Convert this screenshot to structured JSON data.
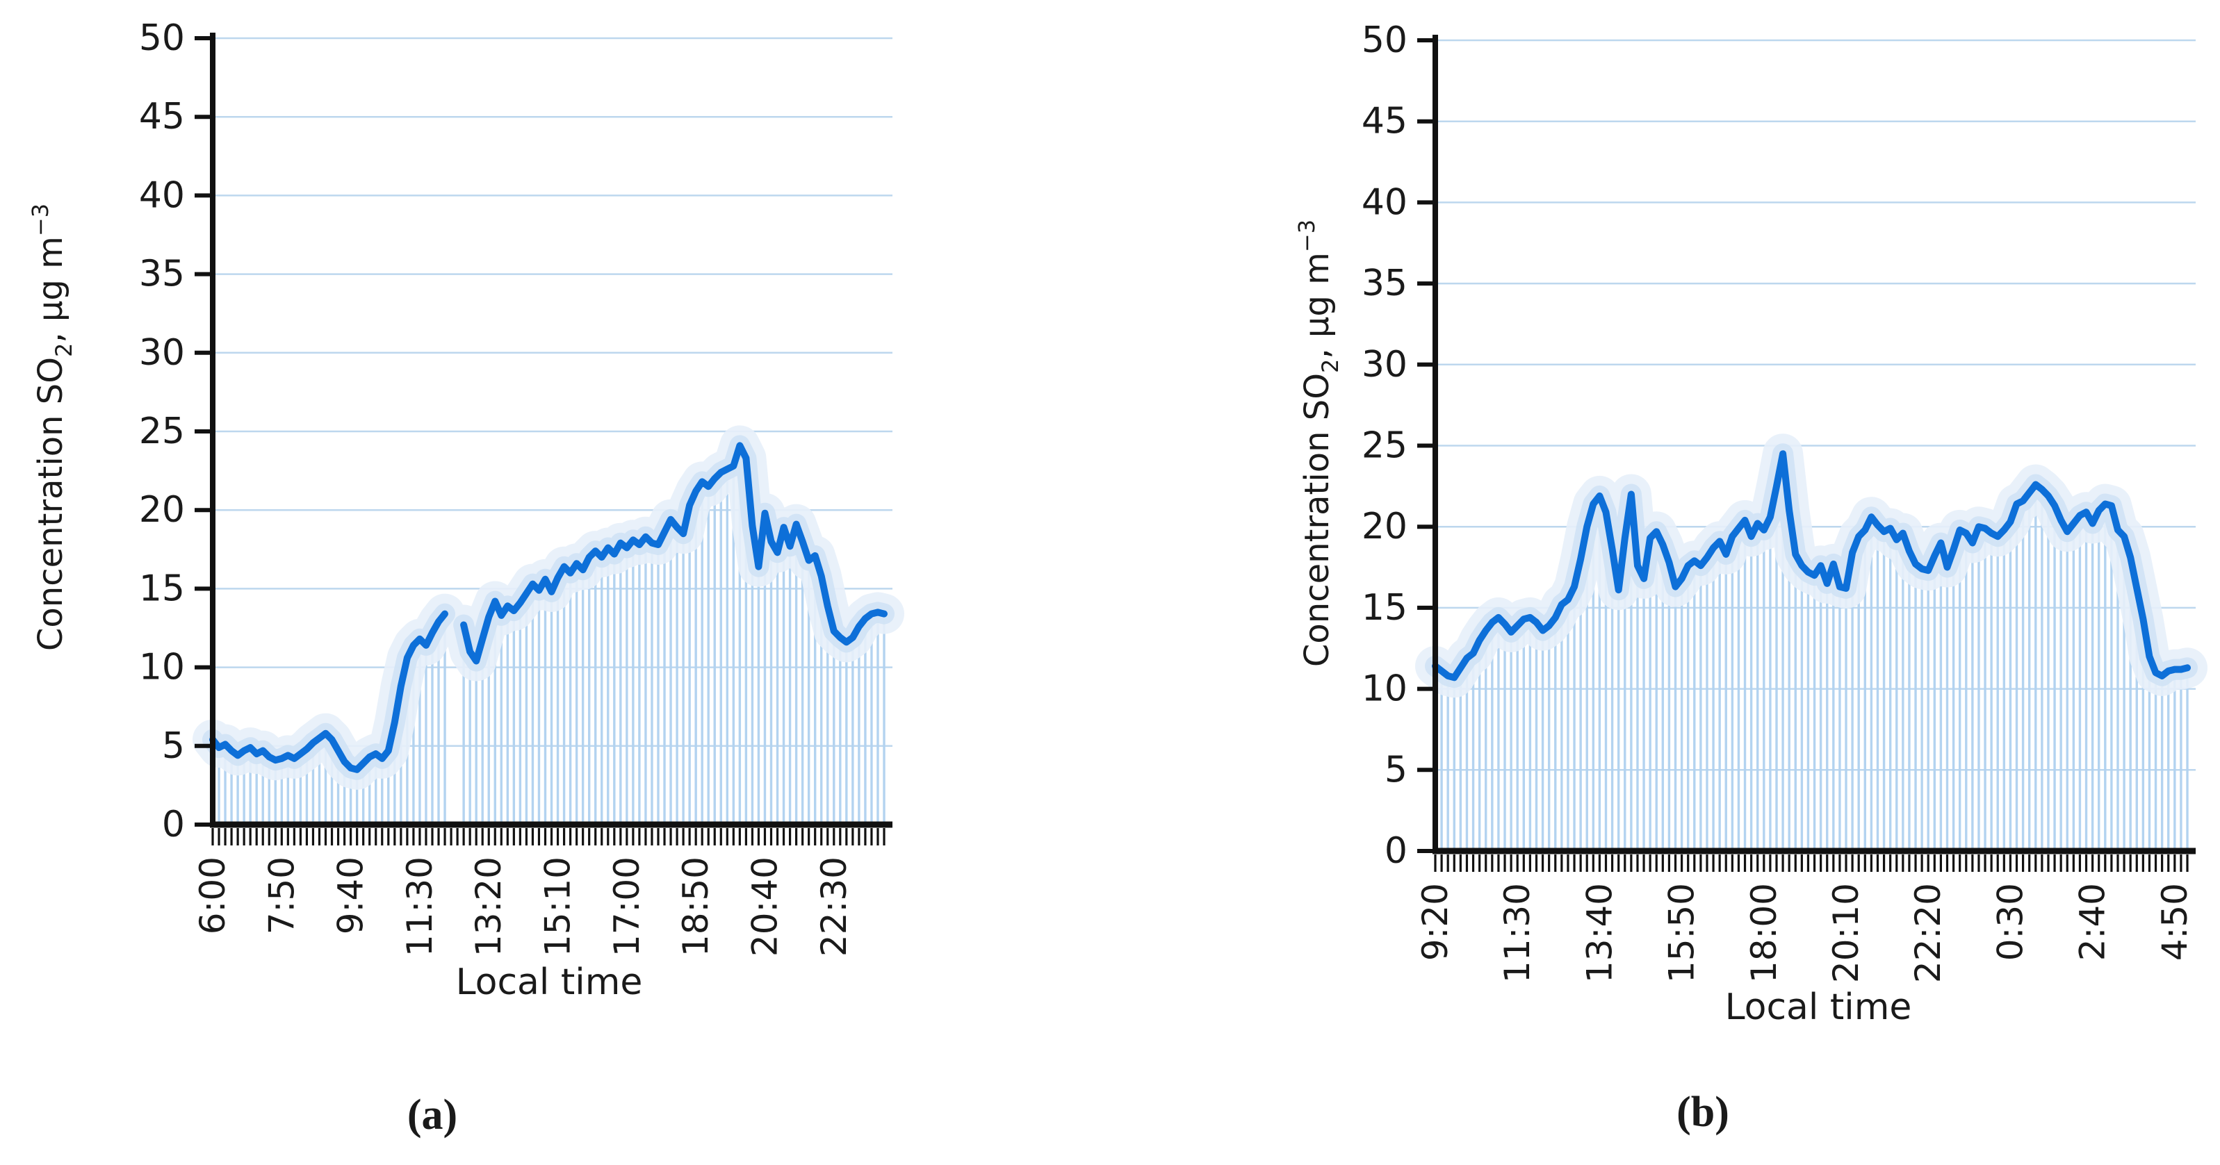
{
  "figure": {
    "background": "#ffffff",
    "captions": [
      "(a)",
      "(b)"
    ]
  },
  "style": {
    "line_color": "#0d6fd8",
    "glow_inner_color": "#cfe2f5",
    "glow_outer_color": "#e7f0fa",
    "stripe_color": "#b3d3f0",
    "grid_color": "#bdd7ee",
    "axis_color": "#111111",
    "text_color": "#1a1a1a"
  },
  "chart_data": [
    {
      "type": "line",
      "panel": "a",
      "title": "",
      "xlabel": "Local time",
      "ylabel": "Concentration SO2, μg m−3",
      "ylabel_parts": {
        "prefix": "Concentration SO",
        "sub": "2",
        "mid": ", μg m",
        "sup": "−3"
      },
      "ylim": [
        0,
        50
      ],
      "y_ticks": [
        0,
        5,
        10,
        15,
        20,
        25,
        30,
        35,
        40,
        45,
        50
      ],
      "x_tick_labels": [
        "6:00",
        "7:50",
        "9:40",
        "11:30",
        "13:20",
        "15:10",
        "17:00",
        "18:50",
        "20:40",
        "22:30"
      ],
      "x_label_every": 11,
      "sample_interval_minutes": 10,
      "grid": "horizontal",
      "legend": "none",
      "values": [
        5.4,
        4.9,
        5.1,
        4.7,
        4.4,
        4.7,
        4.9,
        4.5,
        4.7,
        4.3,
        4.1,
        4.2,
        4.4,
        4.2,
        4.5,
        4.8,
        5.2,
        5.5,
        5.8,
        5.4,
        4.7,
        4.0,
        3.6,
        3.5,
        3.9,
        4.3,
        4.5,
        4.2,
        4.7,
        6.5,
        8.8,
        10.6,
        11.4,
        11.8,
        11.4,
        12.2,
        12.9,
        13.4,
        null,
        null,
        12.7,
        11.0,
        10.4,
        11.8,
        13.2,
        14.2,
        13.3,
        13.9,
        13.6,
        14.1,
        14.7,
        15.3,
        14.9,
        15.6,
        14.8,
        15.7,
        16.4,
        16.0,
        16.6,
        16.2,
        17.0,
        17.4,
        17.0,
        17.6,
        17.2,
        17.9,
        17.6,
        18.1,
        17.8,
        18.3,
        17.9,
        17.8,
        18.6,
        19.4,
        18.9,
        18.5,
        20.3,
        21.2,
        21.8,
        21.5,
        22.0,
        22.4,
        22.6,
        22.8,
        24.1,
        23.3,
        19.0,
        16.4,
        19.8,
        18.0,
        17.3,
        18.9,
        17.7,
        19.1,
        18.0,
        16.8,
        17.1,
        15.8,
        13.9,
        12.3,
        11.9,
        11.6,
        11.9,
        12.6,
        13.1,
        13.4,
        13.5,
        13.4
      ]
    },
    {
      "type": "line",
      "panel": "b",
      "title": "",
      "xlabel": "Local time",
      "ylabel": "Concentration SO2, μg m−3",
      "ylabel_parts": {
        "prefix": "Concentration SO",
        "sub": "2",
        "mid": ", μg m",
        "sup": "−3"
      },
      "ylim": [
        0,
        50
      ],
      "y_ticks": [
        0,
        5,
        10,
        15,
        20,
        25,
        30,
        35,
        40,
        45,
        50
      ],
      "x_tick_labels": [
        "9:20",
        "11:30",
        "13:40",
        "15:50",
        "18:00",
        "20:10",
        "22:20",
        "0:30",
        "2:40",
        "4:50"
      ],
      "x_label_every": 13,
      "sample_interval_minutes": 10,
      "grid": "horizontal",
      "legend": "none",
      "values": [
        11.4,
        11.1,
        10.8,
        10.7,
        11.3,
        11.9,
        12.2,
        13.0,
        13.6,
        14.1,
        14.4,
        14.0,
        13.5,
        13.9,
        14.3,
        14.4,
        14.1,
        13.6,
        13.9,
        14.4,
        15.2,
        15.5,
        16.3,
        18.0,
        20.0,
        21.4,
        21.9,
        20.9,
        18.6,
        16.1,
        19.3,
        22.0,
        17.6,
        16.8,
        19.3,
        19.7,
        18.9,
        17.8,
        16.3,
        16.8,
        17.6,
        17.9,
        17.6,
        18.1,
        18.7,
        19.1,
        18.3,
        19.4,
        19.9,
        20.4,
        19.4,
        20.2,
        19.8,
        20.6,
        22.5,
        24.5,
        21.0,
        18.3,
        17.6,
        17.2,
        17.0,
        17.6,
        16.5,
        17.7,
        16.3,
        16.2,
        18.4,
        19.4,
        19.8,
        20.6,
        20.1,
        19.7,
        19.9,
        19.2,
        19.6,
        18.5,
        17.7,
        17.4,
        17.3,
        18.2,
        19.0,
        17.5,
        18.6,
        19.8,
        19.6,
        19.0,
        20.0,
        19.9,
        19.6,
        19.4,
        19.8,
        20.3,
        21.4,
        21.6,
        22.1,
        22.6,
        22.3,
        21.9,
        21.3,
        20.4,
        19.7,
        20.2,
        20.7,
        20.9,
        20.2,
        21.0,
        21.4,
        21.3,
        19.8,
        19.4,
        18.1,
        16.2,
        14.3,
        12.0,
        11.0,
        10.8,
        11.1,
        11.2,
        11.2,
        11.3
      ]
    }
  ]
}
